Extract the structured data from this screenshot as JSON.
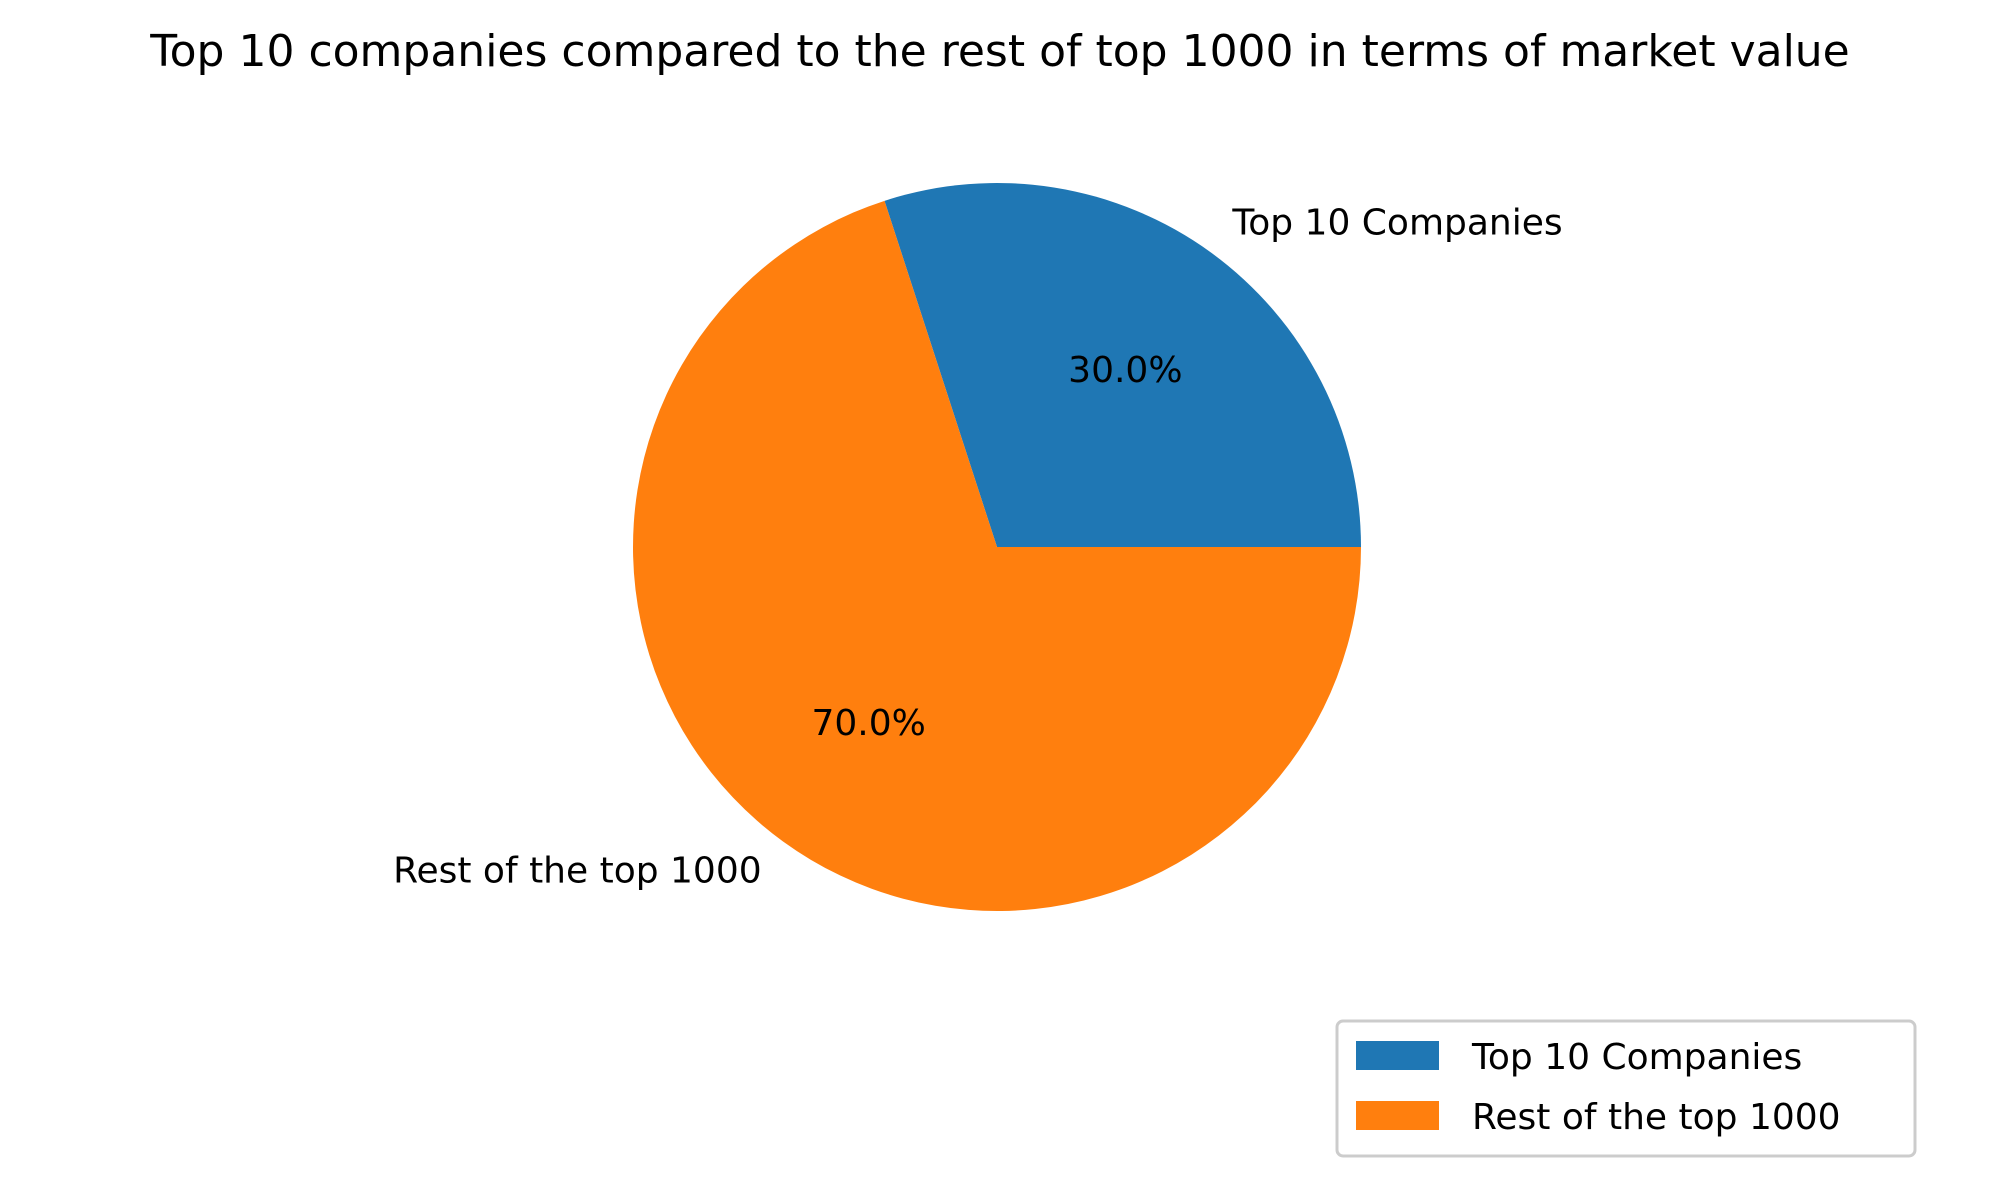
{
  "chart_data": {
    "type": "pie",
    "title": "Top 10 companies compared to the rest of top 1000 in terms of market value",
    "slices": [
      {
        "label": "Top 10 Companies",
        "value": 30.0,
        "pct_label": "30.0%",
        "color": "#1f77b4"
      },
      {
        "label": "Rest of the top 1000",
        "value": 70.0,
        "pct_label": "70.0%",
        "color": "#ff7f0e"
      }
    ],
    "start_angle_deg": 0,
    "direction": "counterclockwise",
    "legend": {
      "position": "lower-right",
      "entries": [
        "Top 10 Companies",
        "Rest of the top 1000"
      ]
    }
  }
}
